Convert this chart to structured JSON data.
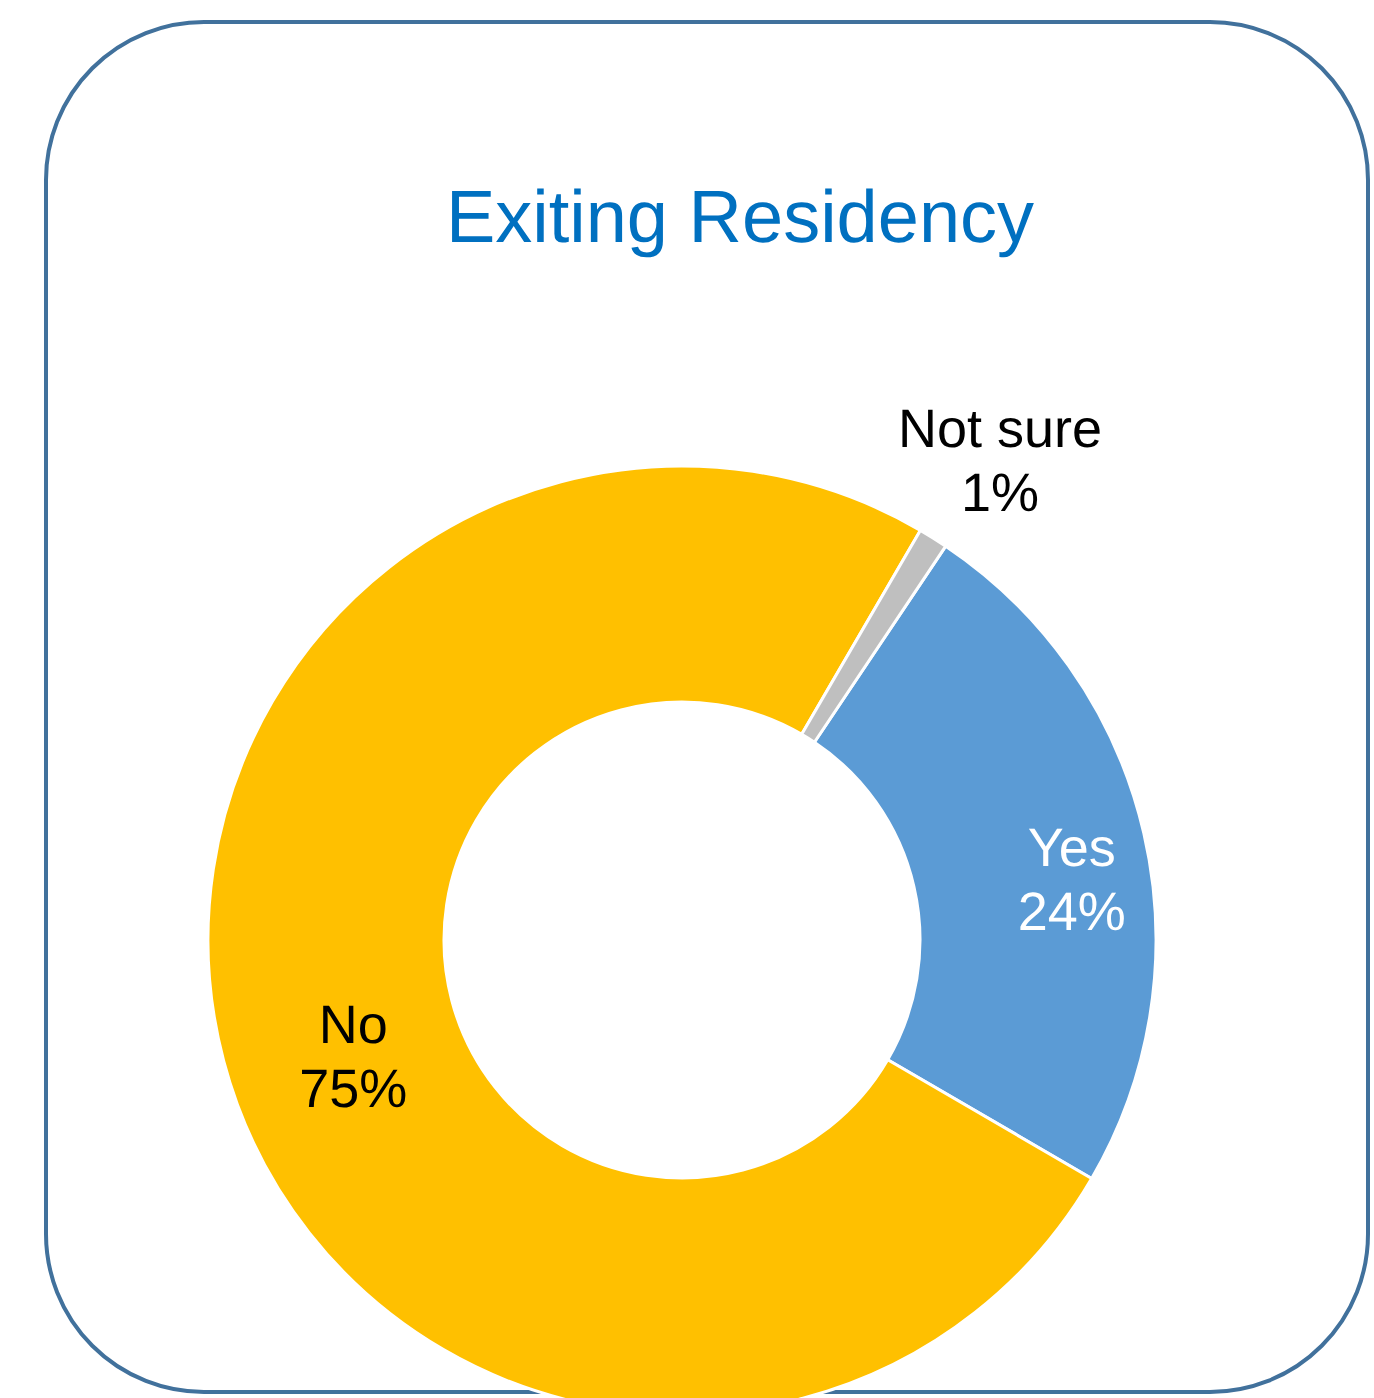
{
  "chart_data": {
    "type": "donut",
    "title": "Exiting Residency",
    "categories": [
      "Yes",
      "No",
      "Not sure"
    ],
    "values": [
      24,
      75,
      1
    ],
    "colors": [
      "#5b9bd5",
      "#ffc000",
      "#bfbfbf"
    ],
    "value_labels": [
      "24%",
      "75%",
      "1%"
    ]
  }
}
